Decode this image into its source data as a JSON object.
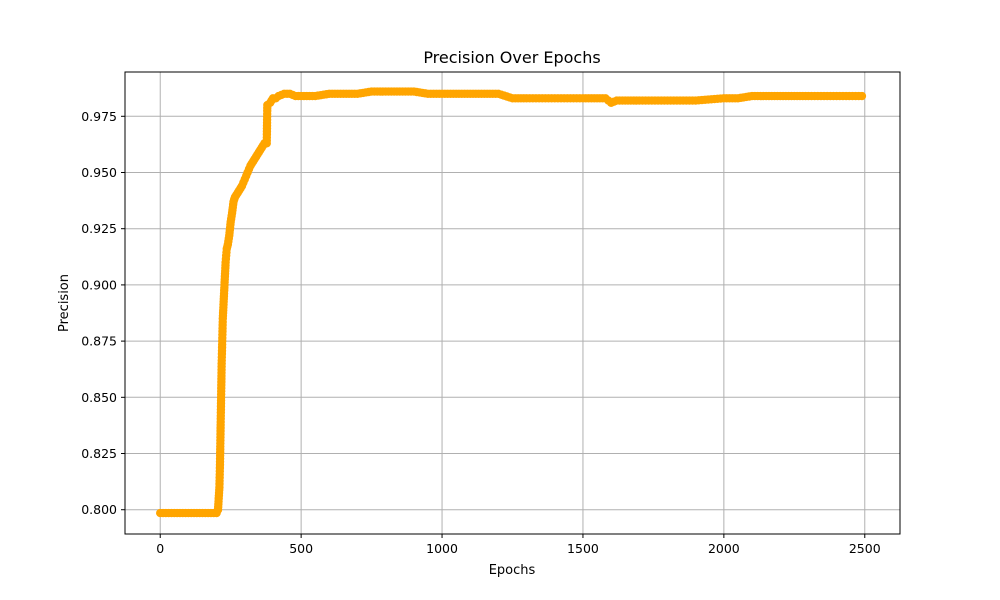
{
  "chart_data": {
    "type": "line",
    "title": "Precision Over Epochs",
    "xlabel": "Epochs",
    "ylabel": "Precision",
    "xlim": [
      -125,
      2625
    ],
    "ylim": [
      0.7892,
      0.9947
    ],
    "xticks": [
      0,
      500,
      1000,
      1500,
      2000,
      2500
    ],
    "xtick_labels": [
      "0",
      "500",
      "1000",
      "1500",
      "2000",
      "2500"
    ],
    "yticks": [
      0.8,
      0.825,
      0.85,
      0.875,
      0.9,
      0.925,
      0.95,
      0.975
    ],
    "ytick_labels": [
      "0.800",
      "0.825",
      "0.850",
      "0.875",
      "0.900",
      "0.925",
      "0.950",
      "0.975"
    ],
    "grid": true,
    "line_color": "#ffa500",
    "marker": "circle",
    "series": [
      {
        "x": [
          0,
          50,
          100,
          150,
          200,
          205,
          210,
          212,
          214,
          216,
          218,
          220,
          222,
          224,
          226,
          228,
          230,
          232,
          234,
          236,
          240,
          245,
          250,
          255,
          260,
          265,
          270,
          280,
          290,
          300,
          310,
          320,
          330,
          340,
          350,
          360,
          370,
          378,
          380,
          390,
          400,
          410,
          420,
          440,
          460,
          480,
          500,
          550,
          600,
          650,
          700,
          750,
          800,
          850,
          900,
          950,
          1000,
          1050,
          1100,
          1150,
          1200,
          1250,
          1300,
          1400,
          1500,
          1580,
          1600,
          1620,
          1700,
          1800,
          1900,
          2000,
          2050,
          2100,
          2150,
          2200,
          2250,
          2300,
          2400,
          2490
        ],
        "y": [
          0.7985,
          0.7985,
          0.7985,
          0.7985,
          0.7985,
          0.8,
          0.81,
          0.82,
          0.835,
          0.85,
          0.865,
          0.875,
          0.885,
          0.89,
          0.895,
          0.9,
          0.905,
          0.91,
          0.913,
          0.916,
          0.918,
          0.922,
          0.928,
          0.932,
          0.937,
          0.939,
          0.94,
          0.942,
          0.944,
          0.947,
          0.95,
          0.953,
          0.955,
          0.957,
          0.959,
          0.961,
          0.963,
          0.963,
          0.98,
          0.981,
          0.983,
          0.983,
          0.984,
          0.985,
          0.985,
          0.984,
          0.984,
          0.984,
          0.985,
          0.985,
          0.985,
          0.986,
          0.986,
          0.986,
          0.986,
          0.985,
          0.985,
          0.985,
          0.985,
          0.985,
          0.985,
          0.983,
          0.983,
          0.983,
          0.983,
          0.983,
          0.981,
          0.982,
          0.982,
          0.982,
          0.982,
          0.983,
          0.983,
          0.984,
          0.984,
          0.984,
          0.984,
          0.984,
          0.984,
          0.984
        ]
      }
    ]
  }
}
